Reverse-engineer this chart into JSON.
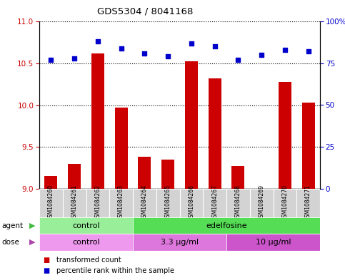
{
  "title": "GDS5304 / 8041168",
  "samples": [
    "GSM1084260",
    "GSM1084261",
    "GSM1084262",
    "GSM1084263",
    "GSM1084264",
    "GSM1084265",
    "GSM1084266",
    "GSM1084267",
    "GSM1084268",
    "GSM1084269",
    "GSM1084270",
    "GSM1084271"
  ],
  "transformed_count": [
    9.15,
    9.3,
    10.62,
    9.97,
    9.38,
    9.35,
    10.52,
    10.32,
    9.27,
    9.0,
    10.28,
    10.03
  ],
  "percentile_rank": [
    77,
    78,
    88,
    84,
    81,
    79,
    87,
    85,
    77,
    80,
    83,
    82
  ],
  "bar_color": "#cc0000",
  "dot_color": "#0000cc",
  "ylim_left": [
    9,
    11
  ],
  "ylim_right": [
    0,
    100
  ],
  "yticks_left": [
    9,
    9.5,
    10,
    10.5,
    11
  ],
  "yticks_right": [
    0,
    25,
    50,
    75,
    100
  ],
  "agent_groups": [
    {
      "label": "control",
      "start": 0,
      "end": 4,
      "color": "#99ee99"
    },
    {
      "label": "edelfosine",
      "start": 4,
      "end": 12,
      "color": "#55dd55"
    }
  ],
  "dose_groups": [
    {
      "label": "control",
      "start": 0,
      "end": 4,
      "color": "#ee99ee"
    },
    {
      "label": "3.3 μg/ml",
      "start": 4,
      "end": 8,
      "color": "#dd77dd"
    },
    {
      "label": "10 μg/ml",
      "start": 8,
      "end": 12,
      "color": "#cc55cc"
    }
  ],
  "legend_items": [
    {
      "label": "transformed count",
      "color": "#cc0000"
    },
    {
      "label": "percentile rank within the sample",
      "color": "#0000cc"
    }
  ],
  "background_color": "#ffffff",
  "tick_label_color_left": "#cc0000",
  "tick_label_color_right": "#0000cc",
  "sample_box_color": "#d3d3d3",
  "sample_box_edge": "#ffffff",
  "agent_label_arrow_color": "#44bb44",
  "dose_label_arrow_color": "#aa44aa"
}
